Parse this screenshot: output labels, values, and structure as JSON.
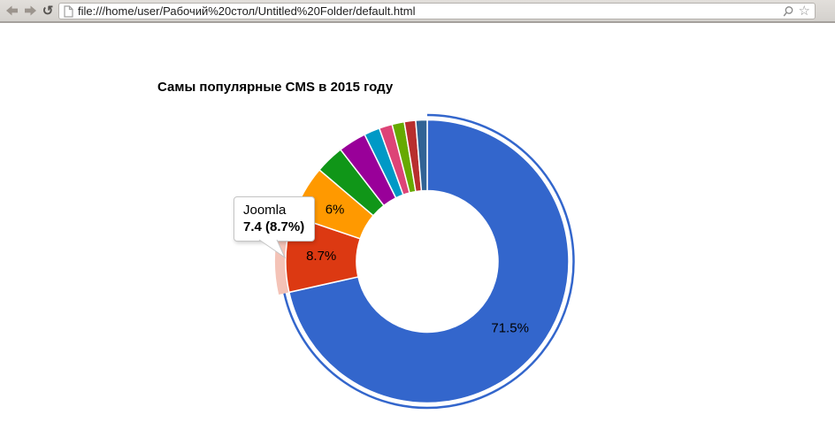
{
  "browser": {
    "url": "file:///home/user/Рабочий%20стол/Untitled%20Folder/default.html",
    "reload_glyph": "↺",
    "bookmark_star_glyph": "☆"
  },
  "page": {
    "title": "Самы популярные CMS в 2015 году"
  },
  "chart_data": {
    "type": "pie",
    "style": "donut",
    "title": "Самы популярные CMS в 2015 году",
    "hole_ratio": 0.5,
    "start_angle_deg": 0,
    "direction": "clockwise",
    "legend": "none",
    "labels_shown": "percent",
    "selected_slice_index": 0,
    "hovered_slice_index": 1,
    "hover_halo_opacity": 0.3,
    "slices": [
      {
        "percent": 71.5,
        "label": "71.5%",
        "color": "#3366cc",
        "selected": true
      },
      {
        "name": "Joomla",
        "value": 7.4,
        "percent": 8.7,
        "label": "8.7%",
        "color": "#dc3912",
        "hovered": true
      },
      {
        "percent": 6.0,
        "label": "6%",
        "color": "#ff9900"
      },
      {
        "percent": 3.3,
        "color": "#109618"
      },
      {
        "percent": 3.2,
        "color": "#990099"
      },
      {
        "percent": 1.8,
        "color": "#0099c6"
      },
      {
        "percent": 1.5,
        "color": "#dd4477"
      },
      {
        "percent": 1.4,
        "color": "#66aa00"
      },
      {
        "percent": 1.3,
        "color": "#b82e2e"
      },
      {
        "percent": 1.3,
        "color": "#316395"
      }
    ],
    "tooltip": {
      "name": "Joomla",
      "value_text": "7.4 (8.7%)"
    }
  }
}
